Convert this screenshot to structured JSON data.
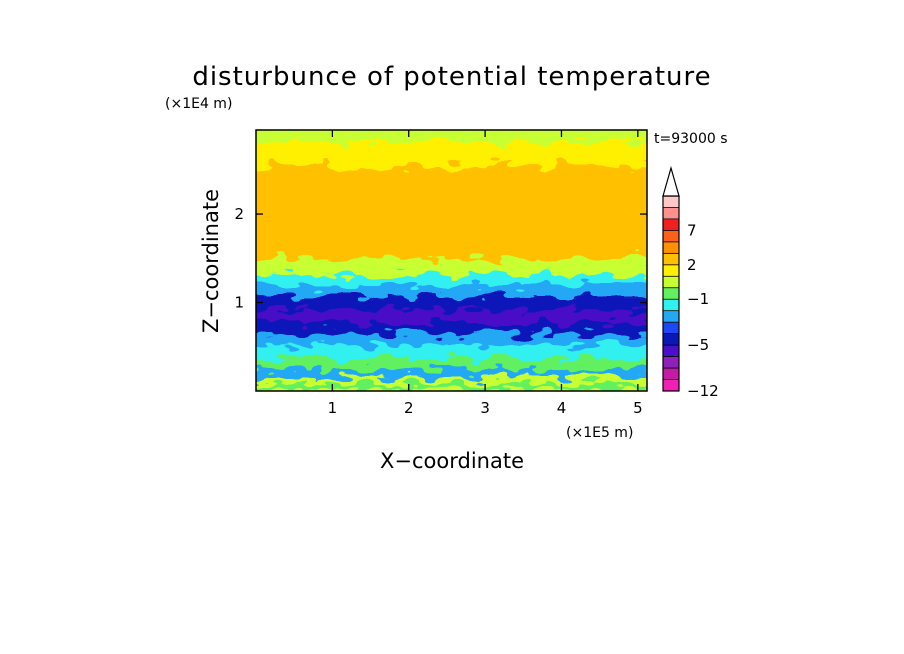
{
  "chart_data": {
    "type": "heatmap",
    "title": "disturbunce of potential temperature",
    "xlabel": "X−coordinate",
    "ylabel": "Z−coordinate",
    "x_unit": "(×1E5 m)",
    "y_unit": "(×1E4 m)",
    "time_label": "t=93000 s",
    "xlim": [
      0,
      5.12
    ],
    "ylim": [
      0,
      2.95
    ],
    "x_ticks": [
      {
        "value": 1,
        "label": "1"
      },
      {
        "value": 2,
        "label": "2"
      },
      {
        "value": 3,
        "label": "3"
      },
      {
        "value": 4,
        "label": "4"
      },
      {
        "value": 5,
        "label": "5"
      }
    ],
    "y_ticks": [
      {
        "value": 1,
        "label": "1"
      },
      {
        "value": 2,
        "label": "2"
      }
    ],
    "colorbar": {
      "levels": [
        -12,
        -10,
        -8,
        -7,
        -5,
        -4,
        -3,
        -2,
        -1,
        0,
        1,
        2,
        3,
        5,
        7,
        9,
        11
      ],
      "colors": [
        "#f020b4",
        "#c41aa6",
        "#8e22b8",
        "#4a10c8",
        "#0a18b8",
        "#1a48f4",
        "#24a8f4",
        "#30f0f0",
        "#60f060",
        "#c8ff30",
        "#fff000",
        "#ffc000",
        "#ff9000",
        "#ff6018",
        "#f02020",
        "#ff9090",
        "#ffc8c8"
      ],
      "labels": [
        {
          "value": -12,
          "label": "−12"
        },
        {
          "value": -5,
          "label": "−5"
        },
        {
          "value": -1,
          "label": "−1"
        },
        {
          "value": 2,
          "label": "2"
        },
        {
          "value": 7,
          "label": "7"
        }
      ],
      "extend": "max"
    },
    "field_profile": [
      {
        "z": 0.0,
        "value": 0.5
      },
      {
        "z": 0.05,
        "value": -0.6
      },
      {
        "z": 0.12,
        "value": 0.3
      },
      {
        "z": 0.2,
        "value": -2.6
      },
      {
        "z": 0.3,
        "value": -0.8
      },
      {
        "z": 0.45,
        "value": -1.3
      },
      {
        "z": 0.6,
        "value": -2.3
      },
      {
        "z": 0.7,
        "value": -4.3
      },
      {
        "z": 0.85,
        "value": -5.2
      },
      {
        "z": 1.0,
        "value": -4.3
      },
      {
        "z": 1.15,
        "value": -2.3
      },
      {
        "z": 1.25,
        "value": -1.2
      },
      {
        "z": 1.4,
        "value": 0.6
      },
      {
        "z": 1.6,
        "value": 2.0
      },
      {
        "z": 1.8,
        "value": 2.4
      },
      {
        "z": 2.0,
        "value": 2.8
      },
      {
        "z": 2.2,
        "value": 2.2
      },
      {
        "z": 2.4,
        "value": 2.6
      },
      {
        "z": 2.7,
        "value": 1.6
      },
      {
        "z": 2.95,
        "value": 0.4
      }
    ]
  }
}
